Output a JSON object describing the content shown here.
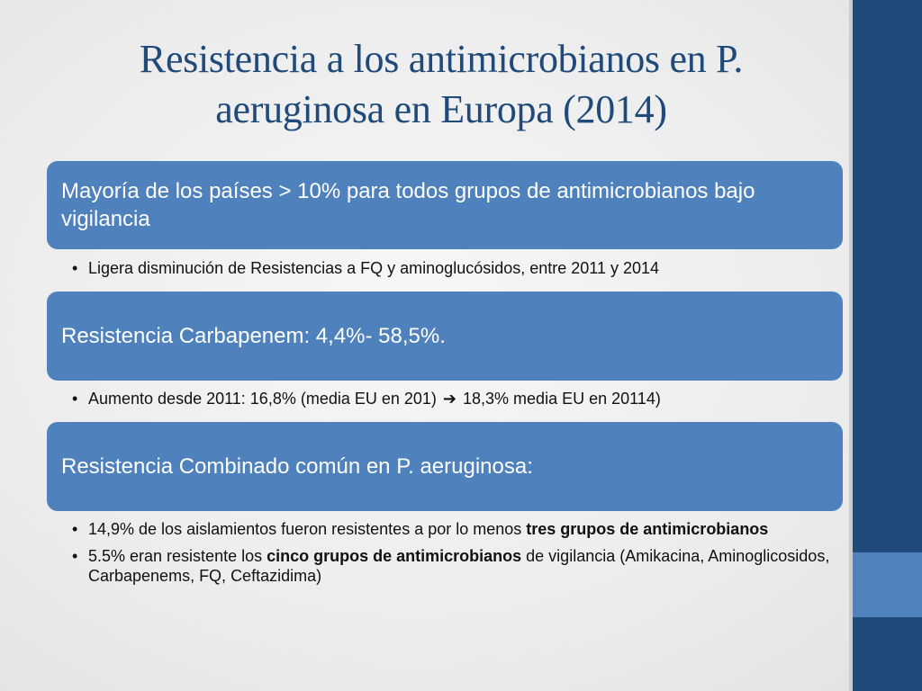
{
  "title": "Resistencia a los antimicrobianos en P. aeruginosa  en Europa (2014)",
  "colors": {
    "title": "#1f4a7a",
    "box": "#4f81bd",
    "sidebar": "#1f4a7a",
    "sidebar_accent": "#4f82bf",
    "background": "#ececec"
  },
  "sections": [
    {
      "heading": "Mayoría de los países > 10% para todos grupos de antimicrobianos bajo vigilancia",
      "bullets": [
        {
          "text": "Ligera disminución de Resistencias a FQ y aminoglucósidos, entre 2011 y 2014"
        }
      ]
    },
    {
      "heading": "Resistencia Carbapenem: 4,4%- 58,5%.",
      "bullets": [
        {
          "pre": "Aumento desde 2011: 16,8% (media EU en 201) ",
          "arrow": "➔",
          "post": " 18,3% media EU en 20114)"
        }
      ]
    },
    {
      "heading": "Resistencia Combinado común en P. aeruginosa:",
      "bullets": [
        {
          "pre": "14,9% de los aislamientos fueron resistentes a por lo menos ",
          "bold": "tres grupos de antimicrobianos",
          "post": ""
        },
        {
          "pre": "5.5% eran resistente los ",
          "bold": "cinco grupos de antimicrobianos",
          "post": " de vigilancia (Amikacina, Aminoglicosidos, Carbapenems, FQ, Ceftazidima)"
        }
      ]
    }
  ]
}
